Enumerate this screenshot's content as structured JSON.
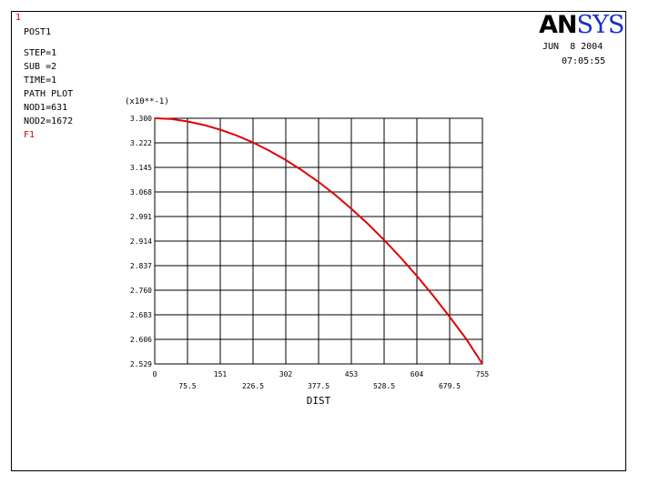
{
  "window_number": "1",
  "info": {
    "lines": [
      "POST1",
      "STEP=1",
      "SUB =2",
      "TIME=1",
      "PATH PLOT",
      "NOD1=631",
      "NOD2=1672"
    ],
    "series_label": "F1"
  },
  "logo": {
    "part1": "AN",
    "part2": "SYS"
  },
  "date": "JUN  8 2004",
  "time": "07:05:55",
  "colors": {
    "curve": "#e00000",
    "logo_sys": "#1a2fd0",
    "label_red": "#d40000"
  },
  "chart_data": {
    "type": "line",
    "title": "",
    "xlabel": "DIST",
    "ylabel": "",
    "y_multiplier": "(x10**-1)",
    "xlim": [
      0,
      755
    ],
    "ylim": [
      2.529,
      3.3
    ],
    "x_ticks_upper": [
      "0",
      "151",
      "302",
      "453",
      "604",
      "755"
    ],
    "x_ticks_lower": [
      "75.5",
      "226.5",
      "377.5",
      "528.5",
      "679.5"
    ],
    "y_ticks": [
      "3.300",
      "3.222",
      "3.145",
      "3.068",
      "2.991",
      "2.914",
      "2.837",
      "2.760",
      "2.683",
      "2.606",
      "2.529"
    ],
    "grid": true,
    "series": [
      {
        "name": "F1",
        "x": [
          0,
          37.75,
          75.5,
          113.25,
          151,
          188.75,
          226.5,
          264.25,
          302,
          339.75,
          377.5,
          415.25,
          453,
          490.75,
          528.5,
          566.25,
          604,
          641.75,
          679.5,
          717.25,
          755
        ],
        "y": [
          3.3,
          3.298,
          3.29,
          3.279,
          3.264,
          3.246,
          3.224,
          3.198,
          3.169,
          3.136,
          3.1,
          3.06,
          3.016,
          2.969,
          2.918,
          2.863,
          2.805,
          2.743,
          2.677,
          2.608,
          2.529
        ]
      }
    ]
  }
}
